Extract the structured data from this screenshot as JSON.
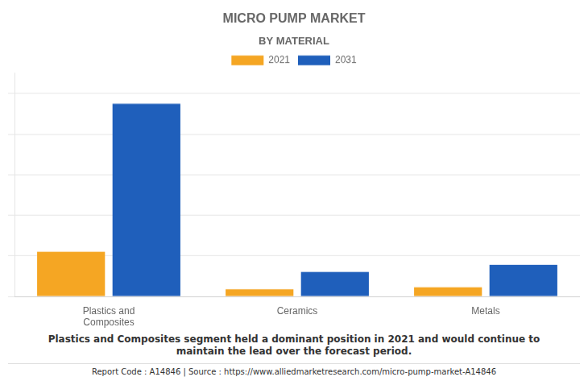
{
  "chart_data": {
    "type": "bar",
    "title": "MICRO PUMP MARKET",
    "subtitle": "BY MATERIAL",
    "categories": [
      "Plastics and\nComposites",
      "Ceramics",
      "Metals"
    ],
    "series": [
      {
        "name": "2021",
        "color": "#F5A623",
        "values": [
          2.2,
          0.35,
          0.45
        ]
      },
      {
        "name": "2031",
        "color": "#1F5FBB",
        "values": [
          9.5,
          1.2,
          1.55
        ]
      }
    ],
    "ylim": [
      0,
      11
    ],
    "yticks": [
      0,
      2,
      4,
      6,
      8,
      10
    ],
    "grid": true,
    "legend": "top",
    "tick_labels": "x",
    "annotations": [
      "Plastics and Composites segment held a dominant position in 2021 and would continue to\nmaintain the lead over the forecast period.",
      "Report Code : A14846  |  Source : https://www.alliedmarketresearch.com/micro-pump-market-A14846"
    ]
  }
}
